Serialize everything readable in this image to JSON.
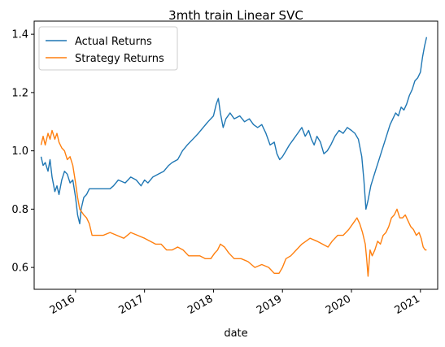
{
  "chart_data": {
    "type": "line",
    "title": "3mth train Linear SVC",
    "xlabel": "date",
    "ylabel": "",
    "xlim": [
      2015.4,
      2021.25
    ],
    "ylim": [
      0.525,
      1.445
    ],
    "x_ticks": [
      2016,
      2017,
      2018,
      2019,
      2020,
      2021
    ],
    "x_tick_labels": [
      "2016",
      "2017",
      "2018",
      "2019",
      "2020",
      "2021"
    ],
    "y_ticks": [
      0.6,
      0.8,
      1.0,
      1.2,
      1.4
    ],
    "y_tick_labels": [
      "0.6",
      "0.8",
      "1.0",
      "1.2",
      "1.4"
    ],
    "legend_position": "upper-left",
    "grid": false,
    "series": [
      {
        "name": "Actual Returns",
        "color": "#1f77b4",
        "points": [
          [
            2015.5,
            0.98
          ],
          [
            2015.53,
            0.95
          ],
          [
            2015.56,
            0.96
          ],
          [
            2015.6,
            0.93
          ],
          [
            2015.63,
            0.97
          ],
          [
            2015.66,
            0.91
          ],
          [
            2015.7,
            0.86
          ],
          [
            2015.73,
            0.88
          ],
          [
            2015.76,
            0.85
          ],
          [
            2015.8,
            0.9
          ],
          [
            2015.84,
            0.93
          ],
          [
            2015.88,
            0.92
          ],
          [
            2015.92,
            0.89
          ],
          [
            2015.96,
            0.9
          ],
          [
            2016.0,
            0.84
          ],
          [
            2016.03,
            0.78
          ],
          [
            2016.06,
            0.75
          ],
          [
            2016.08,
            0.8
          ],
          [
            2016.12,
            0.84
          ],
          [
            2016.16,
            0.85
          ],
          [
            2016.2,
            0.87
          ],
          [
            2016.25,
            0.87
          ],
          [
            2016.3,
            0.87
          ],
          [
            2016.5,
            0.87
          ],
          [
            2016.55,
            0.88
          ],
          [
            2016.62,
            0.9
          ],
          [
            2016.72,
            0.89
          ],
          [
            2016.8,
            0.91
          ],
          [
            2016.88,
            0.9
          ],
          [
            2016.95,
            0.88
          ],
          [
            2017.0,
            0.9
          ],
          [
            2017.05,
            0.89
          ],
          [
            2017.12,
            0.91
          ],
          [
            2017.2,
            0.92
          ],
          [
            2017.28,
            0.93
          ],
          [
            2017.35,
            0.95
          ],
          [
            2017.4,
            0.96
          ],
          [
            2017.48,
            0.97
          ],
          [
            2017.55,
            1.0
          ],
          [
            2017.62,
            1.02
          ],
          [
            2017.7,
            1.04
          ],
          [
            2017.78,
            1.06
          ],
          [
            2017.85,
            1.08
          ],
          [
            2017.92,
            1.1
          ],
          [
            2018.0,
            1.12
          ],
          [
            2018.04,
            1.16
          ],
          [
            2018.07,
            1.18
          ],
          [
            2018.1,
            1.13
          ],
          [
            2018.14,
            1.08
          ],
          [
            2018.18,
            1.11
          ],
          [
            2018.24,
            1.13
          ],
          [
            2018.3,
            1.11
          ],
          [
            2018.38,
            1.12
          ],
          [
            2018.45,
            1.1
          ],
          [
            2018.52,
            1.11
          ],
          [
            2018.58,
            1.09
          ],
          [
            2018.64,
            1.08
          ],
          [
            2018.7,
            1.09
          ],
          [
            2018.76,
            1.06
          ],
          [
            2018.82,
            1.02
          ],
          [
            2018.88,
            1.03
          ],
          [
            2018.92,
            0.99
          ],
          [
            2018.96,
            0.97
          ],
          [
            2019.0,
            0.98
          ],
          [
            2019.05,
            1.0
          ],
          [
            2019.1,
            1.02
          ],
          [
            2019.16,
            1.04
          ],
          [
            2019.22,
            1.06
          ],
          [
            2019.28,
            1.08
          ],
          [
            2019.33,
            1.05
          ],
          [
            2019.38,
            1.07
          ],
          [
            2019.42,
            1.04
          ],
          [
            2019.46,
            1.02
          ],
          [
            2019.5,
            1.05
          ],
          [
            2019.55,
            1.03
          ],
          [
            2019.6,
            0.99
          ],
          [
            2019.65,
            1.0
          ],
          [
            2019.7,
            1.02
          ],
          [
            2019.76,
            1.05
          ],
          [
            2019.82,
            1.07
          ],
          [
            2019.88,
            1.06
          ],
          [
            2019.94,
            1.08
          ],
          [
            2020.0,
            1.07
          ],
          [
            2020.05,
            1.06
          ],
          [
            2020.1,
            1.04
          ],
          [
            2020.15,
            0.98
          ],
          [
            2020.18,
            0.9
          ],
          [
            2020.21,
            0.8
          ],
          [
            2020.24,
            0.83
          ],
          [
            2020.28,
            0.88
          ],
          [
            2020.32,
            0.91
          ],
          [
            2020.36,
            0.94
          ],
          [
            2020.4,
            0.97
          ],
          [
            2020.44,
            1.0
          ],
          [
            2020.48,
            1.03
          ],
          [
            2020.52,
            1.06
          ],
          [
            2020.56,
            1.09
          ],
          [
            2020.6,
            1.11
          ],
          [
            2020.64,
            1.13
          ],
          [
            2020.68,
            1.12
          ],
          [
            2020.72,
            1.15
          ],
          [
            2020.76,
            1.14
          ],
          [
            2020.8,
            1.16
          ],
          [
            2020.84,
            1.19
          ],
          [
            2020.88,
            1.21
          ],
          [
            2020.92,
            1.24
          ],
          [
            2020.96,
            1.25
          ],
          [
            2021.0,
            1.27
          ],
          [
            2021.03,
            1.32
          ],
          [
            2021.06,
            1.36
          ],
          [
            2021.09,
            1.39
          ]
        ]
      },
      {
        "name": "Strategy Returns",
        "color": "#ff7f0e",
        "points": [
          [
            2015.5,
            1.02
          ],
          [
            2015.53,
            1.05
          ],
          [
            2015.56,
            1.02
          ],
          [
            2015.6,
            1.06
          ],
          [
            2015.63,
            1.04
          ],
          [
            2015.66,
            1.07
          ],
          [
            2015.7,
            1.04
          ],
          [
            2015.73,
            1.06
          ],
          [
            2015.76,
            1.03
          ],
          [
            2015.8,
            1.01
          ],
          [
            2015.84,
            1.0
          ],
          [
            2015.88,
            0.97
          ],
          [
            2015.92,
            0.98
          ],
          [
            2015.96,
            0.95
          ],
          [
            2016.0,
            0.89
          ],
          [
            2016.03,
            0.84
          ],
          [
            2016.06,
            0.8
          ],
          [
            2016.09,
            0.79
          ],
          [
            2016.12,
            0.78
          ],
          [
            2016.16,
            0.77
          ],
          [
            2016.2,
            0.75
          ],
          [
            2016.24,
            0.71
          ],
          [
            2016.4,
            0.71
          ],
          [
            2016.5,
            0.72
          ],
          [
            2016.6,
            0.71
          ],
          [
            2016.7,
            0.7
          ],
          [
            2016.8,
            0.72
          ],
          [
            2016.9,
            0.71
          ],
          [
            2017.0,
            0.7
          ],
          [
            2017.08,
            0.69
          ],
          [
            2017.16,
            0.68
          ],
          [
            2017.24,
            0.68
          ],
          [
            2017.32,
            0.66
          ],
          [
            2017.4,
            0.66
          ],
          [
            2017.48,
            0.67
          ],
          [
            2017.56,
            0.66
          ],
          [
            2017.64,
            0.64
          ],
          [
            2017.72,
            0.64
          ],
          [
            2017.8,
            0.64
          ],
          [
            2017.88,
            0.63
          ],
          [
            2017.96,
            0.63
          ],
          [
            2018.02,
            0.65
          ],
          [
            2018.06,
            0.66
          ],
          [
            2018.1,
            0.68
          ],
          [
            2018.16,
            0.67
          ],
          [
            2018.22,
            0.65
          ],
          [
            2018.3,
            0.63
          ],
          [
            2018.4,
            0.63
          ],
          [
            2018.5,
            0.62
          ],
          [
            2018.6,
            0.6
          ],
          [
            2018.7,
            0.61
          ],
          [
            2018.8,
            0.6
          ],
          [
            2018.88,
            0.58
          ],
          [
            2018.95,
            0.58
          ],
          [
            2019.0,
            0.6
          ],
          [
            2019.05,
            0.63
          ],
          [
            2019.12,
            0.64
          ],
          [
            2019.2,
            0.66
          ],
          [
            2019.28,
            0.68
          ],
          [
            2019.34,
            0.69
          ],
          [
            2019.4,
            0.7
          ],
          [
            2019.5,
            0.69
          ],
          [
            2019.58,
            0.68
          ],
          [
            2019.66,
            0.67
          ],
          [
            2019.72,
            0.69
          ],
          [
            2019.8,
            0.71
          ],
          [
            2019.88,
            0.71
          ],
          [
            2019.96,
            0.73
          ],
          [
            2020.02,
            0.75
          ],
          [
            2020.08,
            0.77
          ],
          [
            2020.12,
            0.75
          ],
          [
            2020.16,
            0.72
          ],
          [
            2020.2,
            0.68
          ],
          [
            2020.22,
            0.63
          ],
          [
            2020.24,
            0.57
          ],
          [
            2020.27,
            0.66
          ],
          [
            2020.3,
            0.64
          ],
          [
            2020.34,
            0.66
          ],
          [
            2020.38,
            0.69
          ],
          [
            2020.42,
            0.68
          ],
          [
            2020.46,
            0.71
          ],
          [
            2020.5,
            0.72
          ],
          [
            2020.54,
            0.74
          ],
          [
            2020.58,
            0.77
          ],
          [
            2020.62,
            0.78
          ],
          [
            2020.66,
            0.8
          ],
          [
            2020.7,
            0.77
          ],
          [
            2020.74,
            0.77
          ],
          [
            2020.78,
            0.78
          ],
          [
            2020.82,
            0.76
          ],
          [
            2020.86,
            0.74
          ],
          [
            2020.9,
            0.73
          ],
          [
            2020.94,
            0.71
          ],
          [
            2020.98,
            0.72
          ],
          [
            2021.01,
            0.7
          ],
          [
            2021.04,
            0.67
          ],
          [
            2021.07,
            0.66
          ],
          [
            2021.09,
            0.66
          ]
        ]
      }
    ]
  }
}
